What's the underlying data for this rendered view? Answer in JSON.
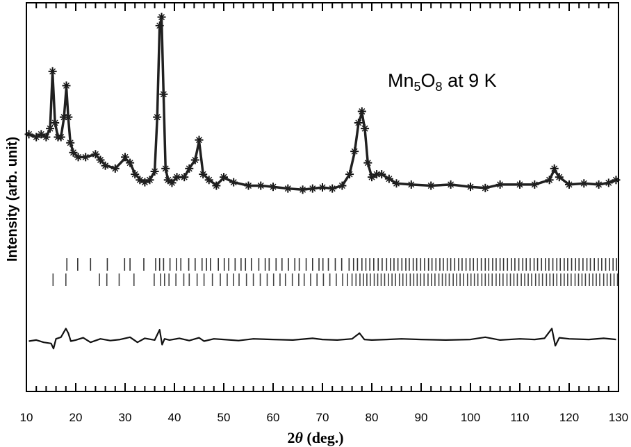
{
  "chart_data": {
    "type": "line",
    "title": "",
    "annotation": {
      "text_prefix": "Mn",
      "sub1": "5",
      "text_mid": "O",
      "sub2": "8",
      "text_suffix": " at 9 K"
    },
    "xlabel_prefix": "2",
    "xlabel_theta": "θ",
    "xlabel_suffix": " (deg.)",
    "ylabel": "Intensity (arb. unit)",
    "xlim": [
      10,
      130
    ],
    "ylim": [
      -100,
      580
    ],
    "xticks": [
      10,
      20,
      30,
      40,
      50,
      60,
      70,
      80,
      90,
      100,
      110,
      120,
      130
    ],
    "colors": {
      "observed": "#111111",
      "calculated": "#202020",
      "difference": "#111111",
      "ticks_phase1": "#333333",
      "ticks_phase2": "#444444"
    },
    "series": [
      {
        "kind": "observed",
        "x": [
          10.5,
          12.0,
          13.0,
          14.0,
          14.8,
          15.3,
          15.8,
          16.4,
          17.0,
          17.6,
          18.1,
          18.5,
          18.9,
          19.5,
          20.5,
          22.0,
          24.0,
          25.0,
          26.0,
          28.0,
          30.0,
          31.0,
          32.0,
          33.0,
          34.0,
          35.0,
          36.0,
          36.5,
          37.0,
          37.4,
          37.8,
          38.2,
          38.7,
          39.5,
          40.5,
          42.0,
          43.0,
          44.2,
          45.0,
          45.8,
          47.0,
          48.5,
          50.0,
          52.0,
          55.0,
          57.5,
          60.0,
          63.0,
          66.0,
          68.0,
          70.0,
          72.0,
          74.0,
          75.5,
          76.5,
          77.3,
          78.0,
          78.6,
          79.2,
          80.0,
          81.0,
          82.0,
          83.5,
          85.0,
          88.0,
          92.0,
          96.0,
          100.0,
          103.0,
          106.0,
          110.0,
          113.0,
          116.0,
          117.0,
          118.0,
          120.0,
          123.0,
          126.0,
          128.0,
          129.5
        ],
        "y": [
          350,
          345,
          350,
          345,
          360,
          460,
          370,
          345,
          345,
          380,
          435,
          380,
          335,
          318,
          310,
          310,
          315,
          305,
          295,
          290,
          310,
          300,
          280,
          270,
          266,
          270,
          285,
          380,
          540,
          555,
          420,
          290,
          270,
          265,
          275,
          275,
          290,
          305,
          340,
          280,
          270,
          260,
          275,
          266,
          260,
          260,
          258,
          255,
          253,
          255,
          257,
          255,
          260,
          280,
          320,
          370,
          390,
          360,
          300,
          275,
          280,
          280,
          272,
          264,
          262,
          260,
          262,
          258,
          256,
          262,
          262,
          262,
          270,
          290,
          275,
          262,
          264,
          262,
          265,
          270
        ]
      },
      {
        "kind": "calculated",
        "x": [
          10.5,
          12.0,
          13.0,
          14.0,
          14.8,
          15.3,
          15.8,
          16.4,
          17.0,
          17.6,
          18.1,
          18.5,
          18.9,
          19.5,
          20.5,
          22.0,
          24.0,
          25.0,
          26.0,
          28.0,
          30.0,
          31.0,
          32.0,
          33.0,
          34.0,
          35.0,
          36.0,
          36.5,
          37.0,
          37.4,
          37.8,
          38.2,
          38.7,
          39.5,
          40.5,
          42.0,
          43.0,
          44.2,
          45.0,
          45.8,
          47.0,
          48.5,
          50.0,
          52.0,
          55.0,
          57.5,
          60.0,
          63.0,
          66.0,
          68.0,
          70.0,
          72.0,
          74.0,
          75.5,
          76.5,
          77.3,
          78.0,
          78.6,
          79.2,
          80.0,
          81.0,
          82.0,
          83.5,
          85.0,
          88.0,
          92.0,
          96.0,
          100.0,
          103.0,
          106.0,
          110.0,
          113.0,
          116.0,
          117.0,
          118.0,
          120.0,
          123.0,
          126.0,
          128.0,
          129.5
        ],
        "y": [
          350,
          345,
          350,
          345,
          360,
          458,
          370,
          345,
          345,
          378,
          432,
          378,
          336,
          318,
          310,
          310,
          315,
          305,
          296,
          290,
          308,
          300,
          281,
          271,
          266,
          270,
          285,
          378,
          538,
          553,
          418,
          291,
          270,
          265,
          275,
          275,
          290,
          305,
          338,
          281,
          270,
          261,
          274,
          266,
          260,
          260,
          258,
          255,
          253,
          255,
          257,
          255,
          260,
          280,
          318,
          368,
          388,
          358,
          300,
          275,
          280,
          280,
          272,
          264,
          262,
          260,
          262,
          258,
          256,
          262,
          262,
          262,
          270,
          288,
          275,
          262,
          264,
          262,
          265,
          270
        ]
      },
      {
        "kind": "difference",
        "x": [
          10.5,
          12,
          13.5,
          15,
          15.5,
          16,
          17,
          18,
          18.5,
          19,
          20,
          21.5,
          23,
          25,
          27,
          29,
          31,
          32.5,
          34,
          36,
          37,
          37.5,
          38,
          39,
          41,
          43,
          45,
          46,
          48,
          50,
          53,
          56,
          60,
          64,
          68,
          70,
          73,
          76,
          77.5,
          78.5,
          80,
          83,
          86,
          90,
          95,
          100,
          103,
          106,
          110,
          113,
          115,
          116.5,
          117.2,
          118,
          120,
          124,
          127,
          129.5
        ],
        "y": [
          -12,
          -10,
          -14,
          -16,
          -25,
          -8,
          -5,
          10,
          2,
          -12,
          -10,
          -6,
          -14,
          -8,
          -11,
          -9,
          -5,
          -14,
          -7,
          -10,
          8,
          -18,
          -8,
          -10,
          -7,
          -11,
          -6,
          -12,
          -8,
          -9,
          -11,
          -8,
          -9,
          -10,
          -7,
          -9,
          -10,
          -8,
          2,
          -9,
          -10,
          -9,
          -8,
          -9,
          -10,
          -9,
          -5,
          -10,
          -8,
          -9,
          -7,
          10,
          -20,
          -6,
          -8,
          -9,
          -7,
          -9
        ]
      }
    ],
    "reflection_ticks": [
      {
        "kind": "phase1",
        "positions": [
          18.2,
          20.4,
          23.0,
          26.4,
          29.9,
          31.0,
          33.8,
          36.2,
          37.0,
          37.8,
          39.1,
          40.4,
          41.3,
          42.9,
          44.2,
          45.6,
          46.5,
          47.3,
          48.9,
          50.1,
          51.0,
          52.3,
          53.5,
          54.4,
          55.6,
          57.1,
          58.4,
          59.2,
          60.6,
          61.8,
          63.1,
          64.4,
          65.3,
          66.7,
          68.0,
          69.3,
          70.1,
          71.2,
          72.6,
          73.9,
          75.4,
          76.3,
          77.1,
          78.0,
          78.8,
          79.6,
          80.4,
          81.3,
          82.1,
          83.0,
          83.8,
          84.5,
          85.3,
          86.1,
          86.9,
          87.6,
          88.4,
          89.1,
          89.9,
          90.7,
          91.5,
          92.2,
          93.0,
          93.8,
          94.5,
          95.3,
          96.0,
          96.8,
          97.6,
          98.3,
          99.1,
          99.9,
          100.6,
          101.4,
          102.2,
          103.0,
          103.7,
          104.5,
          105.2,
          106.0,
          106.7,
          107.5,
          108.3,
          109.0,
          109.8,
          110.6,
          111.3,
          112.1,
          112.9,
          113.6,
          114.4,
          115.2,
          115.9,
          116.7,
          117.5,
          118.2,
          119.0,
          119.7,
          120.5,
          121.3,
          122.0,
          122.8,
          123.6,
          124.3,
          125.1,
          125.9,
          126.6,
          127.4,
          128.2,
          128.9,
          129.6
        ]
      },
      {
        "kind": "phase2",
        "positions": [
          15.4,
          18.0,
          24.8,
          26.3,
          28.8,
          31.8,
          35.9,
          37.2,
          38.0,
          38.9,
          40.3,
          41.9,
          43.0,
          44.6,
          46.0,
          47.7,
          49.3,
          50.7,
          52.0,
          53.1,
          54.6,
          56.0,
          57.4,
          58.8,
          60.1,
          61.4,
          62.5,
          63.9,
          65.2,
          66.3,
          67.6,
          68.9,
          70.2,
          71.5,
          72.8,
          74.1,
          75.1,
          76.0,
          76.8,
          77.6,
          78.3,
          79.0,
          79.7,
          80.5,
          81.2,
          81.9,
          82.6,
          83.4,
          84.1,
          84.8,
          85.6,
          86.3,
          87.0,
          87.8,
          88.5,
          89.2,
          89.9,
          90.6,
          91.4,
          92.1,
          92.8,
          93.6,
          94.3,
          95.0,
          95.7,
          96.5,
          97.2,
          97.9,
          98.6,
          99.4,
          100.1,
          100.8,
          101.5,
          102.3,
          103.0,
          103.7,
          104.4,
          105.2,
          105.9,
          106.6,
          107.4,
          108.1,
          108.8,
          109.5,
          110.3,
          111.0,
          111.7,
          112.4,
          113.2,
          113.9,
          114.6,
          115.4,
          116.1,
          116.8,
          117.5,
          118.3,
          119.0,
          119.7,
          120.4,
          121.2,
          121.9,
          122.6,
          123.3,
          124.1,
          124.8,
          125.5,
          126.2,
          127.0,
          127.7,
          128.4,
          129.1,
          129.8
        ]
      }
    ]
  }
}
